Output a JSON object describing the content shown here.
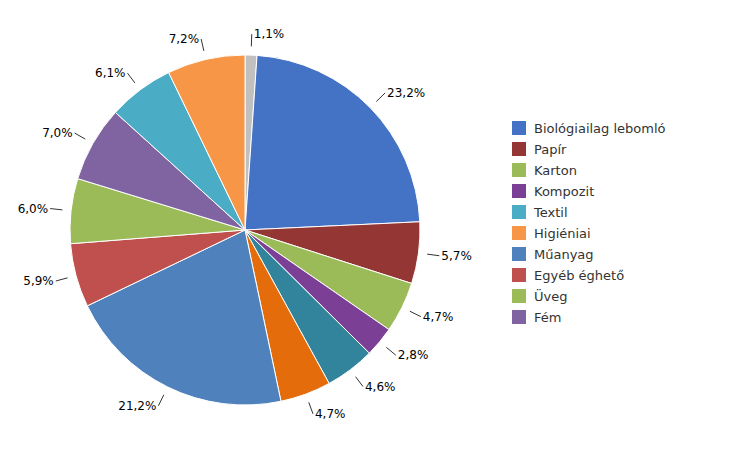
{
  "chart_data": {
    "type": "pie",
    "values": [
      1.1,
      23.2,
      5.7,
      4.7,
      2.8,
      4.6,
      4.7,
      21.2,
      5.9,
      6.0,
      7.0,
      6.1,
      7.2
    ],
    "value_labels": [
      "1,1%",
      "23,2%",
      "5,7%",
      "4,7%",
      "2,8%",
      "4,6%",
      "4,7%",
      "21,2%",
      "5,9%",
      "6,0%",
      "7,0%",
      "6,1%",
      "7,2%"
    ],
    "colors": [
      "#C0C0C0",
      "#4472C4",
      "#943634",
      "#9BBB59",
      "#7B3F96",
      "#31849B",
      "#E46C0A",
      "#4F81BD",
      "#C0504D",
      "#9BBB59",
      "#8064A2",
      "#4BACC6",
      "#F79646"
    ],
    "data_labels": true,
    "legend": "right",
    "legend_entries": [
      {
        "name": "Biológiailag lebomló",
        "color": "#4472C4"
      },
      {
        "name": "Papír",
        "color": "#943634"
      },
      {
        "name": "Karton",
        "color": "#9BBB59"
      },
      {
        "name": "Kompozit",
        "color": "#7B3F96"
      },
      {
        "name": "Textil",
        "color": "#4BACC6"
      },
      {
        "name": "Higiéniai",
        "color": "#F79646"
      },
      {
        "name": "Műanyag",
        "color": "#4F81BD"
      },
      {
        "name": "Egyéb éghető",
        "color": "#C0504D"
      },
      {
        "name": "Üveg",
        "color": "#9BBB59"
      },
      {
        "name": "Fém",
        "color": "#8064A2"
      }
    ]
  }
}
